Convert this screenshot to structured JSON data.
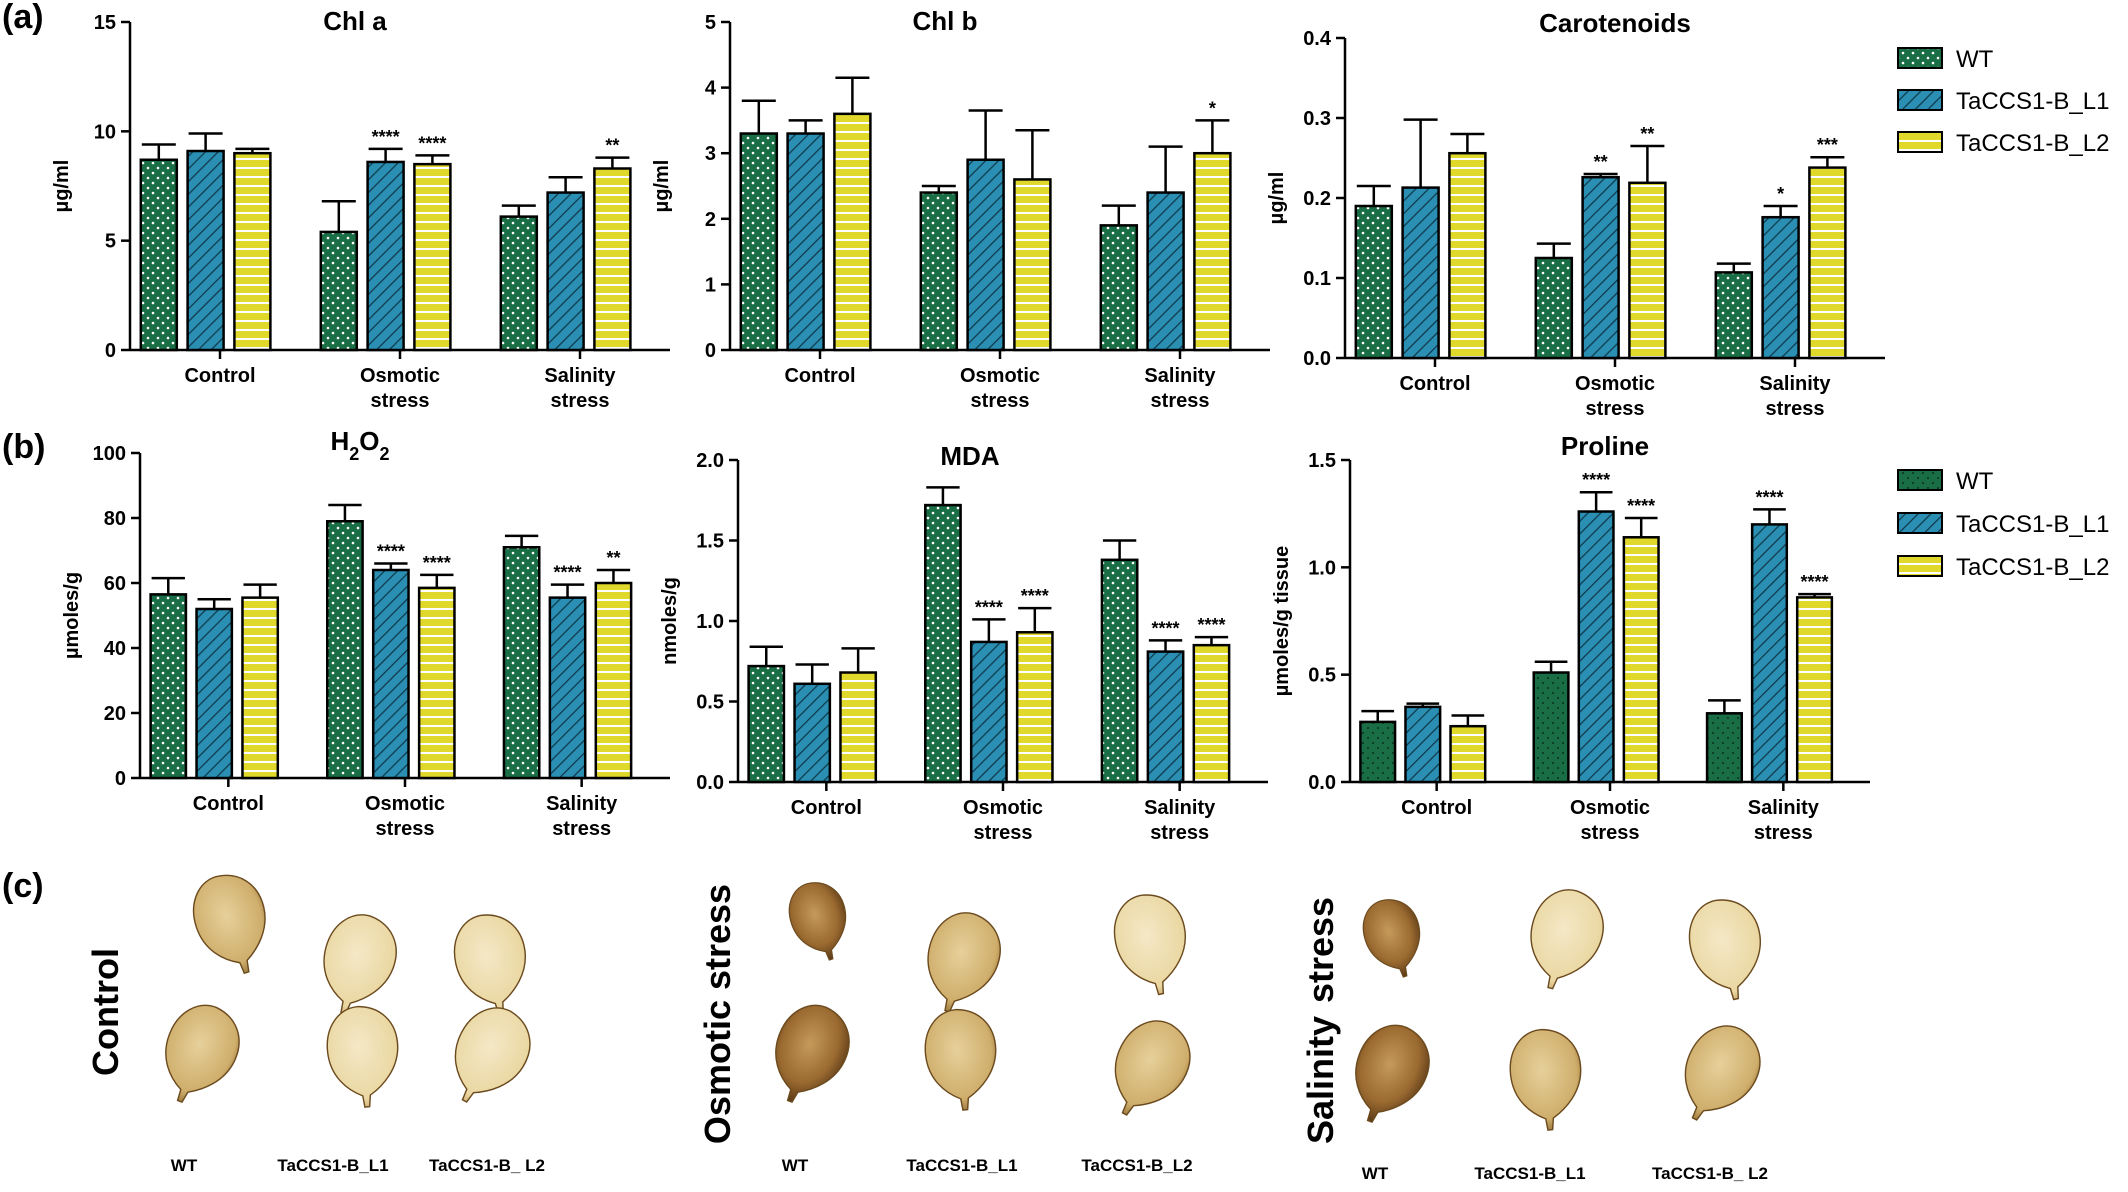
{
  "panel_labels": [
    "(a)",
    "(b)",
    "(c)"
  ],
  "colors": {
    "WT": "#1a6e46",
    "TaCCS1-B_L1": "#2a8fb3",
    "TaCCS1-B_L2": "#e0d92c",
    "leaf_light": "#e8d6a4",
    "leaf_dark": "#8a5a22"
  },
  "legend": {
    "series": [
      "WT",
      "TaCCS1-B_L1",
      "TaCCS1-B_L2"
    ],
    "patterns": [
      "dots",
      "diagonal",
      "horizontal"
    ]
  },
  "chart_data": [
    {
      "id": "chla",
      "type": "bar",
      "title": "Chl a",
      "ylabel": "µg/ml",
      "ylim": [
        0,
        15
      ],
      "yticks": [
        0,
        5,
        10,
        15
      ],
      "tick_decimals": 0,
      "categories": [
        "Control",
        "Osmotic stress",
        "Salinity stress"
      ],
      "category_lines": [
        [
          "Control"
        ],
        [
          "Osmotic",
          "stress"
        ],
        [
          "Salinity",
          "stress"
        ]
      ],
      "series": [
        {
          "name": "WT",
          "values": [
            8.7,
            5.4,
            6.1
          ],
          "errors": [
            0.7,
            1.4,
            0.5
          ],
          "sig": [
            "",
            "",
            ""
          ]
        },
        {
          "name": "TaCCS1-B_L1",
          "values": [
            9.1,
            8.6,
            7.2
          ],
          "errors": [
            0.8,
            0.6,
            0.7
          ],
          "sig": [
            "",
            "****",
            ""
          ]
        },
        {
          "name": "TaCCS1-B_L2",
          "values": [
            9.0,
            8.5,
            8.3
          ],
          "errors": [
            0.2,
            0.4,
            0.5
          ],
          "sig": [
            "",
            "****",
            "**"
          ]
        }
      ]
    },
    {
      "id": "chlb",
      "type": "bar",
      "title": "Chl b",
      "ylabel": "µg/ml",
      "ylim": [
        0,
        5
      ],
      "yticks": [
        0,
        1,
        2,
        3,
        4,
        5
      ],
      "tick_decimals": 0,
      "categories": [
        "Control",
        "Osmotic stress",
        "Salinity stress"
      ],
      "category_lines": [
        [
          "Control"
        ],
        [
          "Osmotic",
          "stress"
        ],
        [
          "Salinity",
          "stress"
        ]
      ],
      "series": [
        {
          "name": "WT",
          "values": [
            3.3,
            2.4,
            1.9
          ],
          "errors": [
            0.5,
            0.1,
            0.3
          ],
          "sig": [
            "",
            "",
            ""
          ]
        },
        {
          "name": "TaCCS1-B_L1",
          "values": [
            3.3,
            2.9,
            2.4
          ],
          "errors": [
            0.2,
            0.75,
            0.7
          ],
          "sig": [
            "",
            "",
            ""
          ]
        },
        {
          "name": "TaCCS1-B_L2",
          "values": [
            3.6,
            2.6,
            3.0
          ],
          "errors": [
            0.55,
            0.75,
            0.5
          ],
          "sig": [
            "",
            "",
            "*"
          ]
        }
      ]
    },
    {
      "id": "car",
      "type": "bar",
      "title": "Carotenoids",
      "ylabel": "µg/ml",
      "ylim": [
        0,
        0.4
      ],
      "yticks": [
        0,
        0.1,
        0.2,
        0.3,
        0.4
      ],
      "tick_decimals": 1,
      "categories": [
        "Control",
        "Osmotic stress",
        "Salinity stress"
      ],
      "category_lines": [
        [
          "Control"
        ],
        [
          "Osmotic",
          "stress"
        ],
        [
          "Salinity",
          "stress"
        ]
      ],
      "series": [
        {
          "name": "WT",
          "values": [
            0.19,
            0.125,
            0.107
          ],
          "errors": [
            0.025,
            0.018,
            0.011
          ],
          "sig": [
            "",
            "",
            ""
          ]
        },
        {
          "name": "TaCCS1-B_L1",
          "values": [
            0.213,
            0.226,
            0.176
          ],
          "errors": [
            0.085,
            0.004,
            0.014
          ],
          "sig": [
            "",
            "**",
            "*"
          ]
        },
        {
          "name": "TaCCS1-B_L2",
          "values": [
            0.256,
            0.219,
            0.238
          ],
          "errors": [
            0.024,
            0.046,
            0.013
          ],
          "sig": [
            "",
            "**",
            "***"
          ]
        }
      ]
    },
    {
      "id": "h2o2",
      "type": "bar",
      "title": "H2O2",
      "title_main": "H",
      "title_sub": "2",
      "title_main2": "O",
      "title_sub2": "2",
      "ylabel": "µmoles/g",
      "ylim": [
        0,
        100
      ],
      "yticks": [
        0,
        20,
        40,
        60,
        80,
        100
      ],
      "tick_decimals": 0,
      "categories": [
        "Control",
        "Osmotic stress",
        "Salinity stress"
      ],
      "category_lines": [
        [
          "Control"
        ],
        [
          "Osmotic",
          "stress"
        ],
        [
          "Salinity",
          "stress"
        ]
      ],
      "series": [
        {
          "name": "WT",
          "values": [
            56.5,
            79.0,
            71.0
          ],
          "errors": [
            5,
            5,
            3.5
          ],
          "sig": [
            "",
            "",
            ""
          ]
        },
        {
          "name": "TaCCS1-B_L1",
          "values": [
            52.0,
            64.0,
            55.5
          ],
          "errors": [
            3,
            2,
            4
          ],
          "sig": [
            "",
            "****",
            "****"
          ]
        },
        {
          "name": "TaCCS1-B_L2",
          "values": [
            55.5,
            58.5,
            60.0
          ],
          "errors": [
            4,
            4,
            4
          ],
          "sig": [
            "",
            "****",
            "**"
          ]
        }
      ]
    },
    {
      "id": "mda",
      "type": "bar",
      "title": "MDA",
      "ylabel": "nmoles/g",
      "ylim": [
        0,
        2.0
      ],
      "yticks": [
        0,
        0.5,
        1.0,
        1.5,
        2.0
      ],
      "tick_decimals": 1,
      "categories": [
        "Control",
        "Osmotic stress",
        "Salinity stress"
      ],
      "category_lines": [
        [
          "Control"
        ],
        [
          "Osmotic",
          "stress"
        ],
        [
          "Salinity",
          "stress"
        ]
      ],
      "series": [
        {
          "name": "WT",
          "values": [
            0.72,
            1.72,
            1.38
          ],
          "errors": [
            0.12,
            0.11,
            0.12
          ],
          "sig": [
            "",
            "",
            ""
          ]
        },
        {
          "name": "TaCCS1-B_L1",
          "values": [
            0.61,
            0.87,
            0.81
          ],
          "errors": [
            0.12,
            0.14,
            0.07
          ],
          "sig": [
            "",
            "****",
            "****"
          ]
        },
        {
          "name": "TaCCS1-B_L2",
          "values": [
            0.68,
            0.93,
            0.85
          ],
          "errors": [
            0.15,
            0.15,
            0.05
          ],
          "sig": [
            "",
            "****",
            "****"
          ]
        }
      ]
    },
    {
      "id": "pro",
      "type": "bar",
      "title": "Proline",
      "ylabel": "µmoles/g tissue",
      "ylim": [
        0,
        1.5
      ],
      "yticks": [
        0,
        0.5,
        1.0,
        1.5
      ],
      "tick_decimals": 1,
      "categories": [
        "Control",
        "Osmotic stress",
        "Salinity stress"
      ],
      "category_lines": [
        [
          "Control"
        ],
        [
          "Osmotic",
          "stress"
        ],
        [
          "Salinity",
          "stress"
        ]
      ],
      "series": [
        {
          "name": "WT",
          "values": [
            0.28,
            0.51,
            0.32
          ],
          "errors": [
            0.05,
            0.05,
            0.06
          ],
          "sig": [
            "",
            "",
            ""
          ]
        },
        {
          "name": "TaCCS1-B_L1",
          "values": [
            0.35,
            1.26,
            1.2
          ],
          "errors": [
            0.015,
            0.09,
            0.07
          ],
          "sig": [
            "",
            "****",
            "****"
          ]
        },
        {
          "name": "TaCCS1-B_L2",
          "values": [
            0.26,
            1.14,
            0.86
          ],
          "errors": [
            0.05,
            0.09,
            0.015
          ],
          "sig": [
            "",
            "****",
            "****"
          ]
        }
      ]
    }
  ],
  "leaf_panel": {
    "sections": [
      {
        "label": "Control",
        "label_lines": [
          "Control"
        ],
        "captions": [
          "WT",
          "TaCCS1-B_L1",
          "TaCCS1-B_ L2"
        ],
        "stain": [
          "medium",
          "light",
          "light",
          "medium",
          "light",
          "light"
        ]
      },
      {
        "label": "Osmotic stress",
        "label_lines": [
          "Osmotic  stress"
        ],
        "captions": [
          "WT",
          "TaCCS1-B_L1",
          "TaCCS1-B_L2"
        ],
        "stain": [
          "dark",
          "medium",
          "light",
          "dark",
          "medium",
          "medium"
        ]
      },
      {
        "label": "Salinity stress",
        "label_lines": [
          "Salinity",
          "stress"
        ],
        "captions": [
          "WT",
          "TaCCS1-B_L1",
          "TaCCS1-B_ L2"
        ],
        "stain": [
          "dark",
          "light",
          "light",
          "dark",
          "medium",
          "medium"
        ]
      }
    ]
  }
}
